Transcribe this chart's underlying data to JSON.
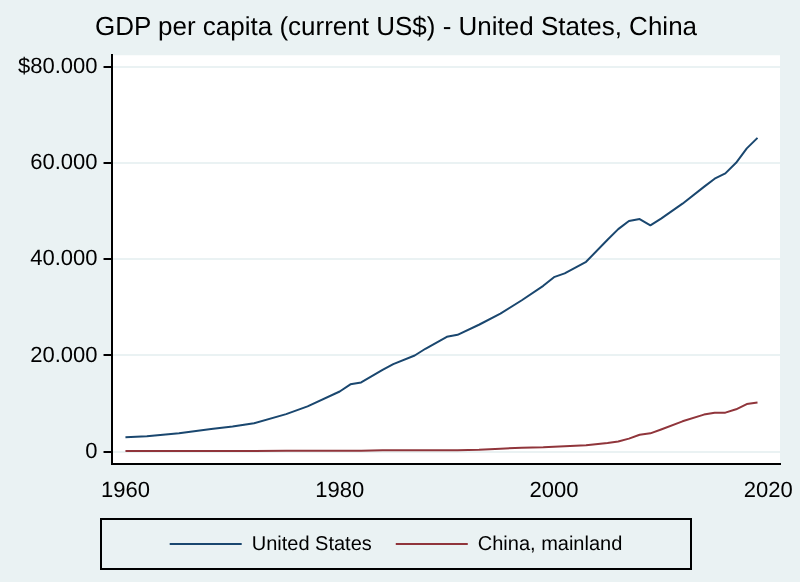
{
  "chart_data": {
    "type": "line",
    "title": "GDP per capita (current US$) - United States, China",
    "x": [
      1960,
      1962,
      1965,
      1968,
      1970,
      1972,
      1975,
      1977,
      1980,
      1981,
      1982,
      1984,
      1985,
      1987,
      1988,
      1990,
      1991,
      1993,
      1995,
      1997,
      1999,
      2000,
      2001,
      2003,
      2005,
      2006,
      2007,
      2008,
      2009,
      2010,
      2012,
      2014,
      2015,
      2016,
      2017,
      2018,
      2019
    ],
    "series": [
      {
        "name": "United States",
        "color": "#1a476f",
        "values": [
          3000,
          3200,
          3800,
          4700,
          5200,
          5900,
          7800,
          9400,
          12500,
          14000,
          14400,
          17000,
          18200,
          20000,
          21400,
          23900,
          24300,
          26400,
          28700,
          31500,
          34500,
          36300,
          37100,
          39500,
          44100,
          46300,
          48000,
          48400,
          47100,
          48500,
          51600,
          55100,
          56800,
          57900,
          60100,
          63100,
          65300
        ]
      },
      {
        "name": "China, mainland",
        "color": "#90353b",
        "values": [
          100,
          100,
          100,
          100,
          100,
          100,
          200,
          200,
          200,
          200,
          200,
          300,
          300,
          300,
          300,
          300,
          300,
          400,
          600,
          800,
          900,
          1000,
          1100,
          1300,
          1800,
          2100,
          2700,
          3500,
          3800,
          4600,
          6300,
          7700,
          8100,
          8100,
          8800,
          9900,
          10200
        ]
      }
    ],
    "xlim": [
      1958.7,
      2021.1
    ],
    "xticks": [
      1960,
      1980,
      2000,
      2020
    ],
    "ylim": [
      -2500,
      82500
    ],
    "yticks": [
      0,
      {
        "value": 20000,
        "label": "20.000"
      },
      {
        "value": 40000,
        "label": "40.000"
      },
      {
        "value": 60000,
        "label": "60.000"
      },
      {
        "value": 80000,
        "label": "$80.000"
      }
    ],
    "grid": "y",
    "legend": "bottom",
    "marker": "none",
    "line_style": "solid"
  }
}
